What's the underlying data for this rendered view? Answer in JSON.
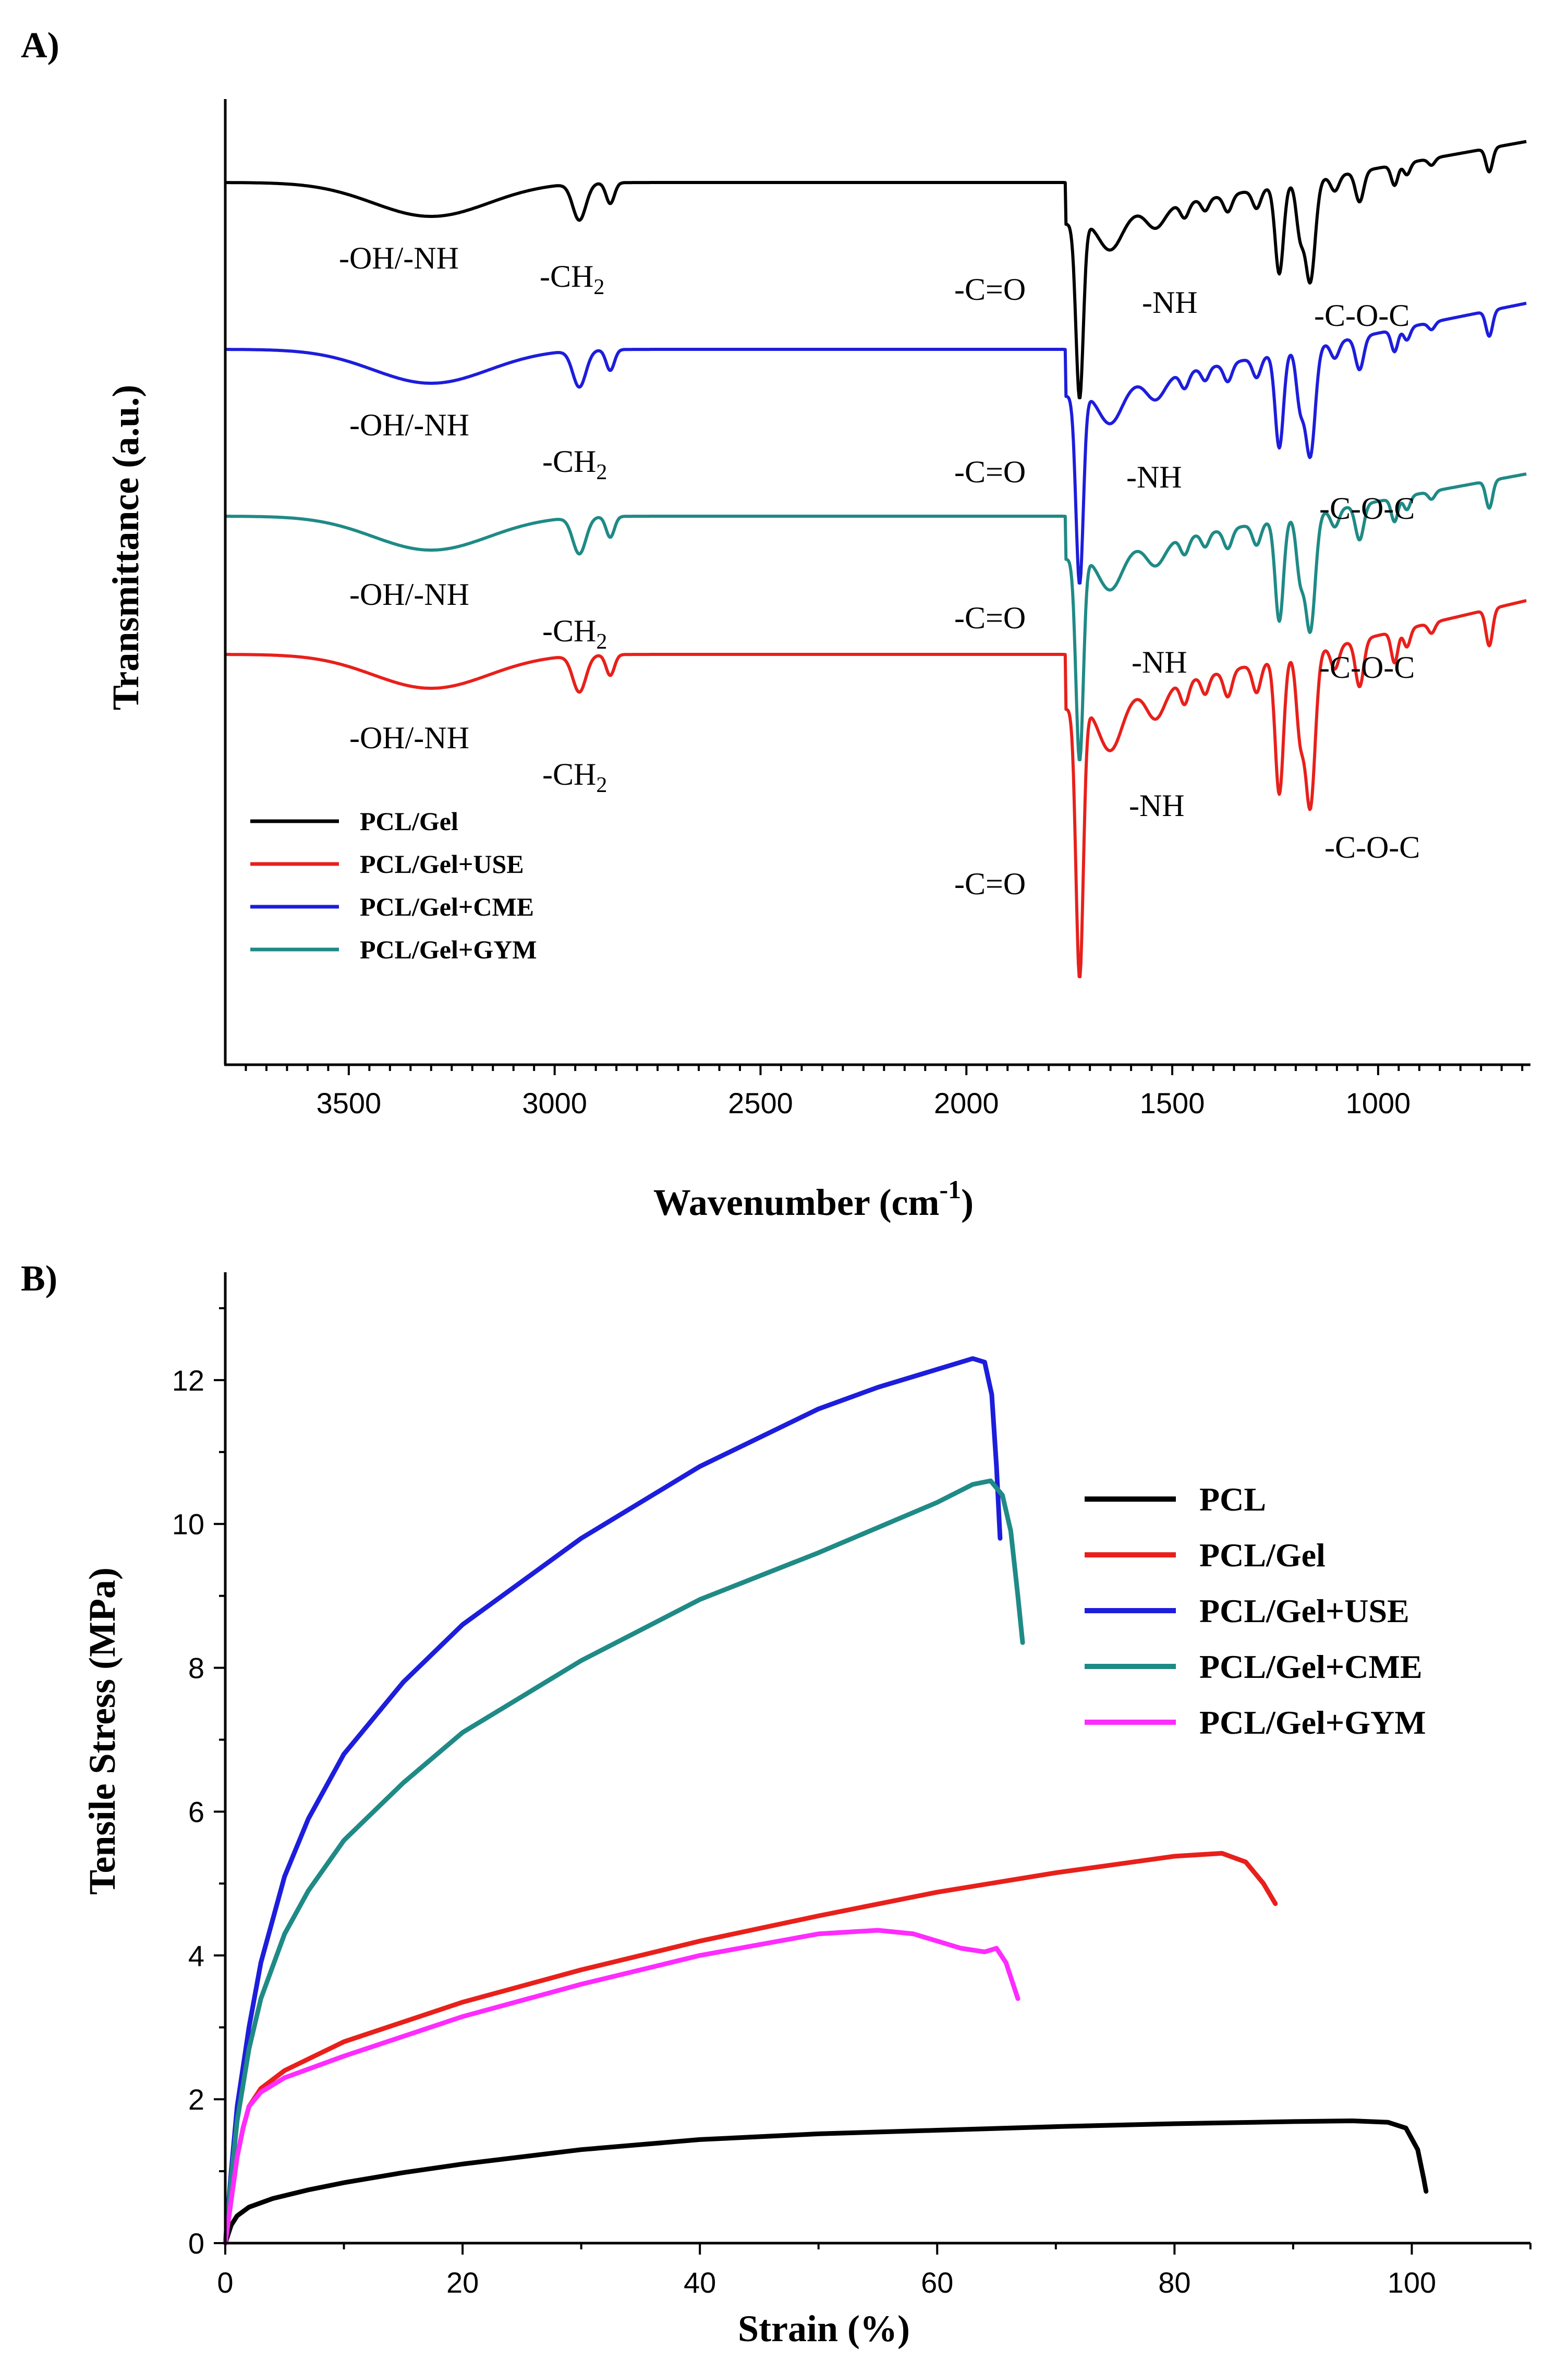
{
  "chart_data": [
    {
      "panel_label": "A)",
      "type": "line",
      "title": "",
      "xlabel": "Wavenumber (cm",
      "xlabel_sup": "-1",
      "xlabel_close": ")",
      "ylabel": "Transmittance (a.u.)",
      "xlim": [
        3800,
        630
      ],
      "xlim_note": "reversed axis",
      "x_ticks": [
        "3500",
        "3000",
        "2500",
        "2000",
        "1500",
        "1000"
      ],
      "x_tick_values": [
        3500,
        3000,
        2500,
        2000,
        1500,
        1000
      ],
      "y_ticks": [],
      "legend_position": "bottom-left",
      "series": [
        {
          "name": "PCL/Gel",
          "color": "#000000",
          "peaks": [
            3300,
            2940,
            2865,
            1725,
            1650,
            1540,
            1240,
            1165,
            1045,
            730
          ]
        },
        {
          "name": "PCL/Gel+USE",
          "color": "#e8201b",
          "peaks": [
            3300,
            2940,
            2865,
            1725,
            1650,
            1540,
            1240,
            1165,
            1045,
            730
          ]
        },
        {
          "name": "PCL/Gel+CME",
          "color": "#1d1ddc",
          "peaks": [
            3300,
            2940,
            2865,
            1725,
            1650,
            1540,
            1240,
            1165,
            1045,
            730
          ]
        },
        {
          "name": "PCL/Gel+GYM",
          "color": "#1f8a86",
          "peaks": [
            3300,
            2940,
            2865,
            1725,
            1650,
            1540,
            1240,
            1165,
            1045,
            730
          ]
        }
      ],
      "annotations": {
        "oh_nh": "-OH/-NH",
        "ch2_main": "-CH",
        "ch2_sub": "2",
        "co": "-C=O",
        "nh": "-NH",
        "coc": "-C-O-C"
      }
    },
    {
      "panel_label": "B)",
      "type": "line",
      "title": "",
      "xlabel": "Strain (%)",
      "ylabel": "Tensile Stress (MPa)",
      "xlim": [
        0,
        110
      ],
      "ylim": [
        0,
        13.5
      ],
      "x_ticks": [
        "0",
        "20",
        "40",
        "60",
        "80",
        "100"
      ],
      "x_tick_values": [
        0,
        20,
        40,
        60,
        80,
        100
      ],
      "y_ticks": [
        "0",
        "2",
        "4",
        "6",
        "8",
        "10",
        "12"
      ],
      "y_tick_values": [
        0,
        2,
        4,
        6,
        8,
        10,
        12
      ],
      "legend_position": "right",
      "series": [
        {
          "name": "PCL",
          "color": "#000000",
          "x": [
            0,
            0.5,
            1,
            2,
            4,
            7,
            10,
            15,
            20,
            30,
            40,
            50,
            60,
            70,
            80,
            90,
            95,
            98,
            99.5,
            100.5,
            101,
            101.2
          ],
          "y": [
            0,
            0.25,
            0.38,
            0.5,
            0.62,
            0.74,
            0.84,
            0.98,
            1.1,
            1.3,
            1.44,
            1.52,
            1.57,
            1.62,
            1.66,
            1.69,
            1.7,
            1.68,
            1.6,
            1.3,
            0.9,
            0.72
          ]
        },
        {
          "name": "PCL/Gel",
          "color": "#e8201b",
          "x": [
            0,
            0.5,
            1,
            1.5,
            2,
            3,
            5,
            10,
            20,
            30,
            40,
            50,
            60,
            70,
            80,
            84,
            86,
            87.5,
            88.5
          ],
          "y": [
            0,
            0.6,
            1.2,
            1.6,
            1.9,
            2.15,
            2.4,
            2.8,
            3.35,
            3.8,
            4.2,
            4.55,
            4.88,
            5.15,
            5.38,
            5.42,
            5.3,
            5.0,
            4.72
          ]
        },
        {
          "name": "PCL/Gel+USE",
          "color": "#1d1ddc",
          "x": [
            0,
            0.5,
            1,
            2,
            3,
            5,
            7,
            10,
            15,
            20,
            30,
            40,
            50,
            55,
            60,
            63,
            64,
            64.6,
            65,
            65.3
          ],
          "y": [
            0,
            1.0,
            1.9,
            3.0,
            3.9,
            5.1,
            5.9,
            6.8,
            7.8,
            8.6,
            9.8,
            10.8,
            11.6,
            11.9,
            12.15,
            12.3,
            12.25,
            11.8,
            10.8,
            9.8
          ]
        },
        {
          "name": "PCL/Gel+CME",
          "color": "#1f8a86",
          "x": [
            0,
            0.5,
            1,
            2,
            3,
            5,
            7,
            10,
            15,
            20,
            30,
            40,
            50,
            60,
            63,
            64.5,
            65.5,
            66.2,
            66.8,
            67.2
          ],
          "y": [
            0,
            0.9,
            1.7,
            2.7,
            3.4,
            4.3,
            4.9,
            5.6,
            6.4,
            7.1,
            8.1,
            8.95,
            9.6,
            10.3,
            10.55,
            10.6,
            10.4,
            9.9,
            9.0,
            8.35
          ]
        },
        {
          "name": "PCL/Gel+GYM",
          "color": "#ff2bff",
          "x": [
            0,
            0.5,
            1,
            1.5,
            2,
            3,
            5,
            10,
            20,
            30,
            40,
            50,
            55,
            58,
            60,
            62,
            64,
            65,
            65.8,
            66.4,
            66.8
          ],
          "y": [
            0,
            0.6,
            1.2,
            1.6,
            1.9,
            2.1,
            2.3,
            2.6,
            3.15,
            3.6,
            4.0,
            4.3,
            4.35,
            4.3,
            4.2,
            4.1,
            4.05,
            4.1,
            3.9,
            3.6,
            3.4
          ]
        }
      ]
    }
  ]
}
